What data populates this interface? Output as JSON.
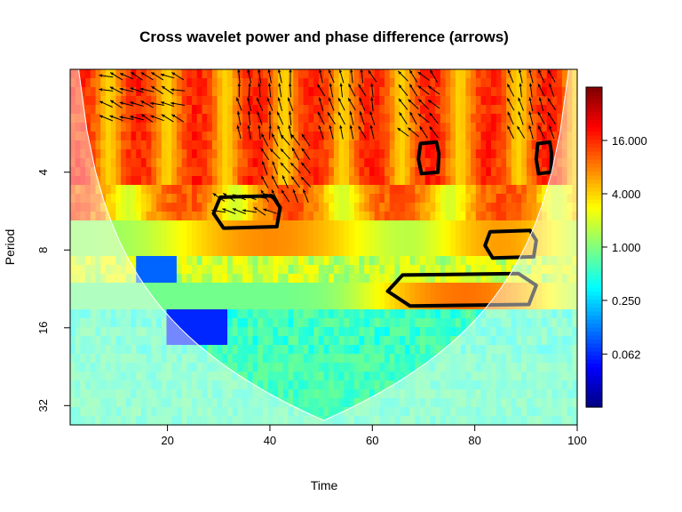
{
  "chart_data": {
    "type": "heatmap",
    "title": "Cross wavelet power and phase difference (arrows)",
    "xlabel": "Time",
    "ylabel": "Period",
    "xlim": [
      1,
      100
    ],
    "ylim": [
      2,
      32
    ],
    "y_scale": "log2",
    "y_reversed": true,
    "x_ticks": [
      20,
      40,
      60,
      80,
      100
    ],
    "y_ticks": [
      4,
      8,
      16,
      32
    ],
    "colorbar": {
      "scale": "log",
      "range": [
        0.0156,
        64
      ],
      "ticks": [
        0.062,
        0.25,
        1.0,
        4.0,
        16.0
      ],
      "tick_labels": [
        "0.062",
        "0.250",
        "1.000",
        "4.000",
        "16.000"
      ],
      "colors": [
        "#00007f",
        "#0000ff",
        "#007fff",
        "#00ffff",
        "#7fff7f",
        "#ffff00",
        "#ff7f00",
        "#ff0000",
        "#7f0000"
      ]
    },
    "cone_of_influence": true,
    "significance_contours": [
      {
        "time": [
          29,
          42
        ],
        "period": [
          5.0,
          6.5
        ]
      },
      {
        "time": [
          69,
          73
        ],
        "period": [
          3.1,
          4.0
        ]
      },
      {
        "time": [
          92,
          95
        ],
        "period": [
          3.1,
          4.0
        ]
      },
      {
        "time": [
          82,
          92
        ],
        "period": [
          6.8,
          8.5
        ]
      },
      {
        "time": [
          63,
          92
        ],
        "period": [
          10.0,
          13.0
        ]
      }
    ],
    "arrows": "phase difference",
    "colors": {
      "cone_mask": "#ffffff",
      "contour": "#000000",
      "arrow": "#000000"
    }
  }
}
